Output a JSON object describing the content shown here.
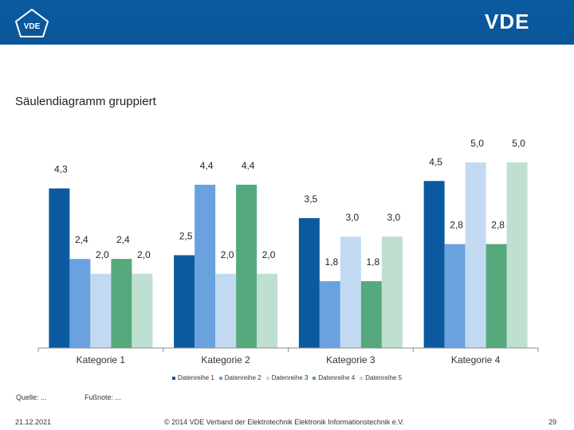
{
  "header": {
    "logo_left_text": "VDE",
    "logo_right_text": "VDE",
    "band_color": "#0b5aa0"
  },
  "slide": {
    "title": "Säulendiagramm gruppiert",
    "source": "Quelle: ...",
    "footnote": "Fußnote: ...",
    "date": "21.12.2021",
    "copyright": "© 2014 VDE Verband der Elektrotechnik Elektronik Informationstechnik e.V.",
    "page_number": "29"
  },
  "chart_data": {
    "type": "bar",
    "title": "Säulendiagramm gruppiert",
    "categories": [
      "Kategorie 1",
      "Kategorie 2",
      "Kategorie 3",
      "Kategorie 4"
    ],
    "series": [
      {
        "name": "Datenreihe 1",
        "color": "#0b5aa0",
        "values": [
          4.3,
          2.5,
          3.5,
          4.5
        ],
        "labels": [
          "4,3",
          "2,5",
          "3,5",
          "4,5"
        ]
      },
      {
        "name": "Datenreihe 2",
        "color": "#6aa2df",
        "values": [
          2.4,
          4.4,
          1.8,
          2.8
        ],
        "labels": [
          "2,4",
          "4,4",
          "1,8",
          "2,8"
        ]
      },
      {
        "name": "Datenreihe 3",
        "color": "#c2daf1",
        "values": [
          2.0,
          2.0,
          3.0,
          5.0
        ],
        "labels": [
          "2,0",
          "2,0",
          "3,0",
          "5,0"
        ]
      },
      {
        "name": "Datenreihe 4",
        "color": "#55a97c",
        "values": [
          2.4,
          4.4,
          1.8,
          2.8
        ],
        "labels": [
          "2,4",
          "4,4",
          "1,8",
          "2,8"
        ]
      },
      {
        "name": "Datenreihe 5",
        "color": "#bfe0d0",
        "values": [
          2.0,
          2.0,
          3.0,
          5.0
        ],
        "labels": [
          "2,0",
          "2,0",
          "3,0",
          "5,0"
        ]
      }
    ],
    "ylim": [
      0,
      5
    ],
    "xlabel": "",
    "ylabel": "",
    "grid": false,
    "legend": "bottom"
  }
}
